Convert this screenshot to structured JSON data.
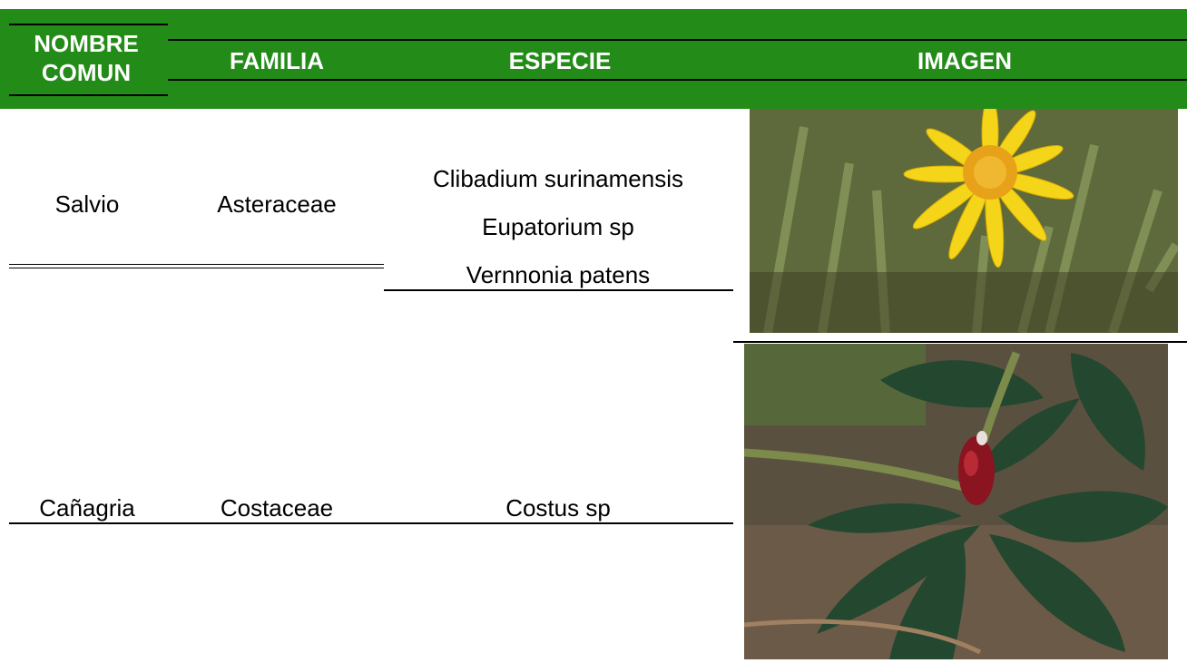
{
  "table": {
    "headers": [
      "NOMBRE COMUN",
      "FAMILIA",
      "ESPECIE",
      "IMAGEN"
    ],
    "rows": [
      {
        "common": "Salvio",
        "family": "Asteraceae",
        "species": [
          "Clibadium surinamensis",
          "Eupatorium sp",
          "Vernnonia patens"
        ]
      },
      {
        "common": "Cañagria",
        "family": "Costaceae",
        "species": [
          "Costus sp"
        ]
      }
    ]
  }
}
